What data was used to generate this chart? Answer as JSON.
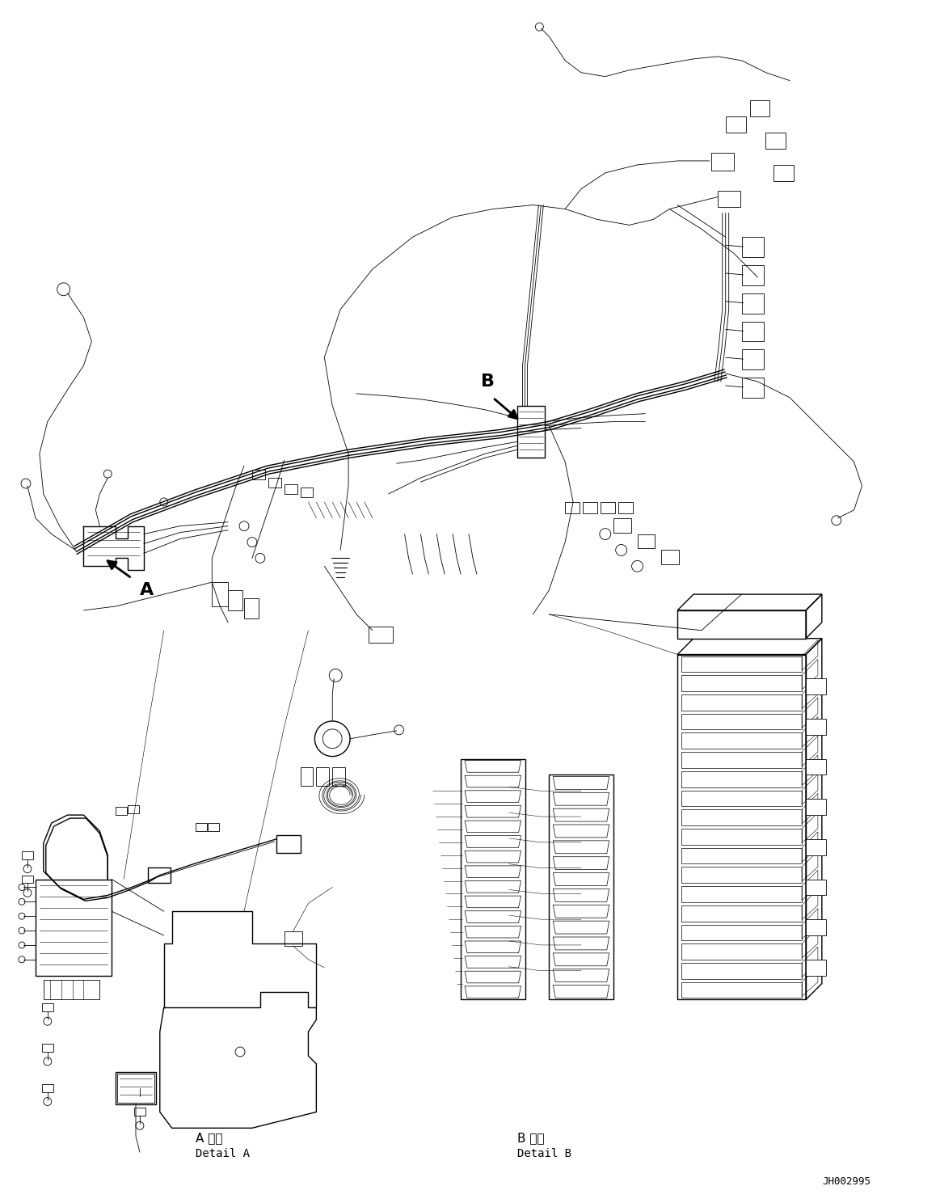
{
  "background_color": "#ffffff",
  "line_color": "#000000",
  "figure_width": 11.63,
  "figure_height": 14.88,
  "dpi": 100,
  "label_A": "A",
  "label_B": "B",
  "detail_A_japanese": "A 詳細",
  "detail_A_english": "Detail A",
  "detail_B_japanese": "B 詳細",
  "detail_B_english": "Detail B",
  "part_number": "JH002995",
  "lw": 1.0,
  "lw_thin": 0.6,
  "lw_thick": 1.8
}
